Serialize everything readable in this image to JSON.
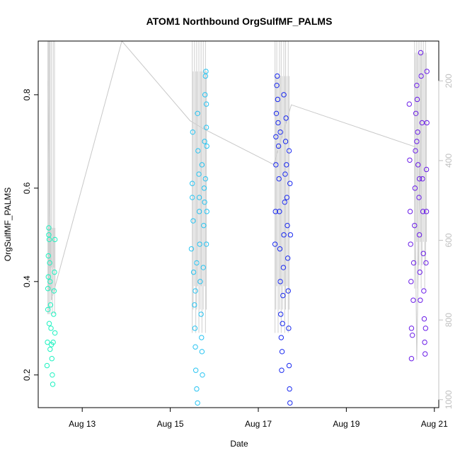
{
  "chart_data": {
    "type": "scatter",
    "title": "ATOM1 Northbound OrgSulfMF_PALMS",
    "xlabel": "Date",
    "ylabel": "OrgSulfMF_PALMS",
    "x_ticks": [
      "Aug 13",
      "Aug 15",
      "Aug 17",
      "Aug 19",
      "Aug 21"
    ],
    "x_tick_days": [
      13,
      15,
      17,
      19,
      21
    ],
    "xlim": [
      12.0,
      21.1
    ],
    "y_ticks": [
      0.2,
      0.4,
      0.6,
      0.8
    ],
    "ylim": [
      0.13,
      0.915
    ],
    "y2_ticks": [
      200,
      400,
      600,
      800,
      1000
    ],
    "y2lim": [
      100,
      1020
    ],
    "grid": false,
    "series": [
      {
        "color": "#1cf2c0",
        "days": [
          12.22,
          12.23,
          12.23,
          12.24,
          12.25,
          12.26,
          12.27,
          12.28,
          12.3,
          12.32,
          12.34,
          12.35,
          12.37,
          12.38
        ],
        "min": 0.18,
        "max": 0.515,
        "points": [
          [
            12.2,
            0.22
          ],
          [
            12.21,
            0.27
          ],
          [
            12.22,
            0.34
          ],
          [
            12.22,
            0.385
          ],
          [
            12.23,
            0.41
          ],
          [
            12.23,
            0.455
          ],
          [
            12.24,
            0.5
          ],
          [
            12.24,
            0.515
          ],
          [
            12.25,
            0.49
          ],
          [
            12.26,
            0.44
          ],
          [
            12.27,
            0.4
          ],
          [
            12.28,
            0.35
          ],
          [
            12.29,
            0.3
          ],
          [
            12.3,
            0.265
          ],
          [
            12.31,
            0.235
          ],
          [
            12.32,
            0.2
          ],
          [
            12.33,
            0.18
          ],
          [
            12.34,
            0.27
          ],
          [
            12.35,
            0.33
          ],
          [
            12.36,
            0.38
          ],
          [
            12.37,
            0.42
          ],
          [
            12.38,
            0.49
          ],
          [
            12.38,
            0.29
          ],
          [
            12.25,
            0.31
          ],
          [
            12.27,
            0.255
          ]
        ]
      },
      {
        "color": "#27c4f2",
        "days": [
          15.5,
          15.52,
          15.55,
          15.58,
          15.6,
          15.62,
          15.65,
          15.68,
          15.7,
          15.72,
          15.75,
          15.78,
          15.8,
          15.82
        ],
        "min": 0.14,
        "max": 0.85,
        "points": [
          [
            15.48,
            0.47
          ],
          [
            15.5,
            0.58
          ],
          [
            15.5,
            0.61
          ],
          [
            15.51,
            0.72
          ],
          [
            15.52,
            0.53
          ],
          [
            15.53,
            0.42
          ],
          [
            15.55,
            0.35
          ],
          [
            15.56,
            0.3
          ],
          [
            15.57,
            0.26
          ],
          [
            15.58,
            0.21
          ],
          [
            15.6,
            0.17
          ],
          [
            15.62,
            0.14
          ],
          [
            15.62,
            0.76
          ],
          [
            15.63,
            0.68
          ],
          [
            15.65,
            0.63
          ],
          [
            15.66,
            0.55
          ],
          [
            15.67,
            0.48
          ],
          [
            15.68,
            0.4
          ],
          [
            15.7,
            0.33
          ],
          [
            15.71,
            0.28
          ],
          [
            15.72,
            0.25
          ],
          [
            15.73,
            0.2
          ],
          [
            15.75,
            0.43
          ],
          [
            15.76,
            0.52
          ],
          [
            15.77,
            0.6
          ],
          [
            15.78,
            0.7
          ],
          [
            15.79,
            0.8
          ],
          [
            15.8,
            0.84
          ],
          [
            15.81,
            0.85
          ],
          [
            15.82,
            0.78
          ],
          [
            15.82,
            0.73
          ],
          [
            15.83,
            0.69
          ],
          [
            15.8,
            0.62
          ],
          [
            15.78,
            0.57
          ],
          [
            15.83,
            0.55
          ],
          [
            15.82,
            0.48
          ],
          [
            15.66,
            0.58
          ],
          [
            15.72,
            0.65
          ],
          [
            15.6,
            0.44
          ],
          [
            15.57,
            0.38
          ]
        ]
      },
      {
        "color": "#1a2af0",
        "days": [
          17.38,
          17.4,
          17.42,
          17.45,
          17.48,
          17.5,
          17.52,
          17.55,
          17.58,
          17.6,
          17.62,
          17.65,
          17.68,
          17.7
        ],
        "min": 0.14,
        "max": 0.84,
        "points": [
          [
            17.38,
            0.48
          ],
          [
            17.39,
            0.55
          ],
          [
            17.4,
            0.65
          ],
          [
            17.4,
            0.71
          ],
          [
            17.41,
            0.76
          ],
          [
            17.42,
            0.82
          ],
          [
            17.43,
            0.84
          ],
          [
            17.44,
            0.79
          ],
          [
            17.45,
            0.74
          ],
          [
            17.46,
            0.69
          ],
          [
            17.47,
            0.62
          ],
          [
            17.48,
            0.55
          ],
          [
            17.49,
            0.47
          ],
          [
            17.5,
            0.4
          ],
          [
            17.51,
            0.33
          ],
          [
            17.52,
            0.28
          ],
          [
            17.53,
            0.21
          ],
          [
            17.54,
            0.25
          ],
          [
            17.55,
            0.31
          ],
          [
            17.56,
            0.37
          ],
          [
            17.57,
            0.43
          ],
          [
            17.58,
            0.5
          ],
          [
            17.6,
            0.57
          ],
          [
            17.61,
            0.63
          ],
          [
            17.62,
            0.7
          ],
          [
            17.63,
            0.75
          ],
          [
            17.64,
            0.65
          ],
          [
            17.65,
            0.58
          ],
          [
            17.66,
            0.52
          ],
          [
            17.67,
            0.45
          ],
          [
            17.68,
            0.38
          ],
          [
            17.69,
            0.3
          ],
          [
            17.7,
            0.22
          ],
          [
            17.71,
            0.17
          ],
          [
            17.72,
            0.14
          ],
          [
            17.72,
            0.61
          ],
          [
            17.73,
            0.5
          ],
          [
            17.7,
            0.68
          ],
          [
            17.5,
            0.72
          ],
          [
            17.58,
            0.8
          ]
        ]
      },
      {
        "color": "#6a1ce8",
        "days": [
          20.55,
          20.57,
          20.6,
          20.62,
          20.65,
          20.68,
          20.7,
          20.72,
          20.75,
          20.78,
          20.8,
          20.82
        ],
        "min": 0.235,
        "max": 0.89,
        "points": [
          [
            20.43,
            0.78
          ],
          [
            20.44,
            0.66
          ],
          [
            20.45,
            0.55
          ],
          [
            20.46,
            0.48
          ],
          [
            20.47,
            0.4
          ],
          [
            20.48,
            0.3
          ],
          [
            20.48,
            0.235
          ],
          [
            20.5,
            0.285
          ],
          [
            20.52,
            0.36
          ],
          [
            20.53,
            0.44
          ],
          [
            20.55,
            0.52
          ],
          [
            20.56,
            0.6
          ],
          [
            20.57,
            0.68
          ],
          [
            20.58,
            0.76
          ],
          [
            20.6,
            0.82
          ],
          [
            20.61,
            0.79
          ],
          [
            20.62,
            0.72
          ],
          [
            20.63,
            0.65
          ],
          [
            20.65,
            0.58
          ],
          [
            20.66,
            0.5
          ],
          [
            20.67,
            0.42
          ],
          [
            20.68,
            0.36
          ],
          [
            20.69,
            0.89
          ],
          [
            20.7,
            0.84
          ],
          [
            20.72,
            0.74
          ],
          [
            20.73,
            0.62
          ],
          [
            20.74,
            0.55
          ],
          [
            20.75,
            0.46
          ],
          [
            20.76,
            0.38
          ],
          [
            20.77,
            0.32
          ],
          [
            20.78,
            0.27
          ],
          [
            20.79,
            0.245
          ],
          [
            20.8,
            0.3
          ],
          [
            20.81,
            0.44
          ],
          [
            20.82,
            0.55
          ],
          [
            20.82,
            0.64
          ],
          [
            20.83,
            0.74
          ],
          [
            20.83,
            0.85
          ],
          [
            20.6,
            0.7
          ],
          [
            20.66,
            0.62
          ]
        ]
      }
    ],
    "flight_track": {
      "color": "#c8c8c8",
      "points": [
        [
          12.22,
          200
        ],
        [
          12.3,
          750
        ],
        [
          13.9,
          100
        ],
        [
          15.45,
          300
        ],
        [
          15.75,
          320
        ],
        [
          17.35,
          410
        ],
        [
          17.75,
          260
        ],
        [
          20.55,
          365
        ],
        [
          20.6,
          900
        ],
        [
          20.7,
          200
        ]
      ]
    }
  }
}
